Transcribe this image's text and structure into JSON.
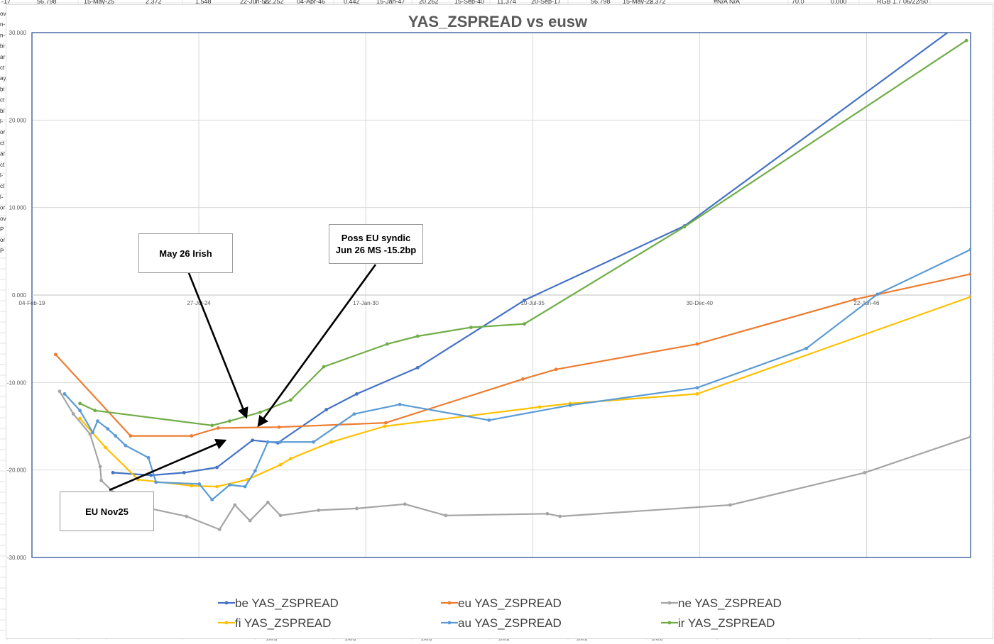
{
  "sheet": {
    "top_row": [
      "-17",
      "56.798",
      "15-May-25",
      "2.372",
      "1.548",
      "22-Jun-50",
      "22.252",
      "04-Apr-46",
      "0.442",
      "15-Jan-47",
      "20.262",
      "15-Sep-40",
      "11.374",
      "20-Sep-17",
      "56.798",
      "15-May-25",
      "2.372",
      "#N/A N/A",
      "70.0",
      "0.000",
      "RGB 1.7 06/22/50"
    ],
    "left_column": [
      "ov",
      "n-",
      "n-",
      "bi",
      "ar",
      "ct",
      "ay",
      "bi",
      "ct",
      "bi",
      "l-",
      "or",
      "ct",
      "ar",
      "ct",
      "l-",
      "ct",
      "l-",
      "or",
      "ov",
      "P",
      "or",
      "P"
    ],
    "bottom_row": [
      "#N/A",
      "#N/A",
      "#N/A",
      "#N/A",
      "#N/A",
      "#N/A"
    ]
  },
  "chart_data": {
    "type": "line",
    "title": "YAS_ZSPREAD vs eusw",
    "xlabel": "",
    "ylabel": "",
    "x_axis": {
      "type": "date",
      "tick_labels": [
        "04-Feb-19",
        "27-Jul-24",
        "17-Jan-30",
        "10-Jul-35",
        "30-Dec-40",
        "22-Jun-46"
      ],
      "tick_dates": [
        "2019-02-04",
        "2024-07-27",
        "2030-01-17",
        "2035-07-10",
        "2040-12-30",
        "2046-06-22"
      ],
      "range": [
        "2019-02-04",
        "2049-11-20"
      ]
    },
    "ylim": [
      -30,
      30
    ],
    "y_ticks": [
      "30.000",
      "20.000",
      "10.000",
      "0.000",
      "-10.000",
      "-20.000",
      "-30.000"
    ],
    "y_tick_values": [
      30,
      20,
      10,
      0,
      -10,
      -20,
      -30
    ],
    "grid": true,
    "legend_position": "bottom",
    "series": [
      {
        "name": "be YAS_ZSPREAD",
        "color": "#4472c4",
        "points": [
          [
            "2021-10-01",
            -20.3
          ],
          [
            "2023-01-01",
            -20.6
          ],
          [
            "2024-02-01",
            -20.3
          ],
          [
            "2025-03-01",
            -19.7
          ],
          [
            "2026-05-01",
            -16.6
          ],
          [
            "2027-03-01",
            -16.9
          ],
          [
            "2028-10-01",
            -13.1
          ],
          [
            "2029-10-01",
            -11.3
          ],
          [
            "2031-10-01",
            -8.3
          ],
          [
            "2035-04-01",
            -0.6
          ],
          [
            "2040-07-01",
            7.9
          ],
          [
            "2049-04-01",
            30.3
          ]
        ]
      },
      {
        "name": "eu YAS_ZSPREAD",
        "color": "#ed7d31",
        "points": [
          [
            "2019-11-15",
            -6.8
          ],
          [
            "2022-05-01",
            -16.1
          ],
          [
            "2024-05-01",
            -16.1
          ],
          [
            "2025-03-15",
            -15.2
          ],
          [
            "2027-03-15",
            -15.1
          ],
          [
            "2030-09-15",
            -14.6
          ],
          [
            "2035-03-15",
            -9.6
          ],
          [
            "2036-04-15",
            -8.5
          ],
          [
            "2040-12-01",
            -5.6
          ],
          [
            "2046-02-01",
            -0.5
          ],
          [
            "2049-11-20",
            2.4
          ]
        ]
      },
      {
        "name": "ne YAS_ZSPREAD",
        "color": "#a5a5a5",
        "points": [
          [
            "2020-01-01",
            -11.0
          ],
          [
            "2020-06-15",
            -13.6
          ],
          [
            "2021-01-01",
            -15.9
          ],
          [
            "2021-05-01",
            -19.6
          ],
          [
            "2021-05-15",
            -21.2
          ],
          [
            "2021-10-15",
            -22.6
          ],
          [
            "2022-03-01",
            -23.0
          ],
          [
            "2022-11-01",
            -24.3
          ],
          [
            "2024-03-01",
            -25.3
          ],
          [
            "2025-04-01",
            -26.8
          ],
          [
            "2025-10-01",
            -24.0
          ],
          [
            "2026-04-01",
            -25.8
          ],
          [
            "2026-11-01",
            -23.7
          ],
          [
            "2027-04-01",
            -25.2
          ],
          [
            "2028-07-01",
            -24.6
          ],
          [
            "2029-10-01",
            -24.4
          ],
          [
            "2031-05-01",
            -23.9
          ],
          [
            "2032-09-01",
            -25.2
          ],
          [
            "2036-01-01",
            -25.0
          ],
          [
            "2036-06-01",
            -25.3
          ],
          [
            "2042-01-01",
            -24.0
          ],
          [
            "2046-06-01",
            -20.3
          ],
          [
            "2049-11-20",
            -16.2
          ]
        ]
      },
      {
        "name": "fi YAS_ZSPREAD",
        "color": "#ffc000",
        "points": [
          [
            "2020-09-01",
            -14.1
          ],
          [
            "2021-07-01",
            -17.4
          ],
          [
            "2022-08-01",
            -21.1
          ],
          [
            "2024-05-01",
            -21.8
          ],
          [
            "2025-03-01",
            -21.9
          ],
          [
            "2026-03-01",
            -21.1
          ],
          [
            "2027-04-01",
            -19.4
          ],
          [
            "2027-08-01",
            -18.7
          ],
          [
            "2028-12-01",
            -16.8
          ],
          [
            "2030-09-01",
            -15.0
          ],
          [
            "2035-10-01",
            -12.8
          ],
          [
            "2036-10-01",
            -12.4
          ],
          [
            "2040-12-01",
            -11.3
          ],
          [
            "2049-11-20",
            -0.2
          ]
        ]
      },
      {
        "name": "au YAS_ZSPREAD",
        "color": "#5b9bd5",
        "points": [
          [
            "2020-03-01",
            -11.3
          ],
          [
            "2020-09-01",
            -13.2
          ],
          [
            "2021-02-01",
            -15.7
          ],
          [
            "2021-04-01",
            -14.4
          ],
          [
            "2021-08-01",
            -15.3
          ],
          [
            "2021-11-01",
            -16.1
          ],
          [
            "2022-03-01",
            -17.2
          ],
          [
            "2022-12-01",
            -18.6
          ],
          [
            "2023-03-01",
            -21.4
          ],
          [
            "2024-08-01",
            -21.6
          ],
          [
            "2025-01-01",
            -23.4
          ],
          [
            "2025-08-01",
            -21.7
          ],
          [
            "2026-02-01",
            -21.9
          ],
          [
            "2026-06-01",
            -20.1
          ],
          [
            "2026-11-01",
            -16.8
          ],
          [
            "2027-04-01",
            -16.8
          ],
          [
            "2028-05-01",
            -16.8
          ],
          [
            "2029-09-01",
            -13.6
          ],
          [
            "2031-03-01",
            -12.5
          ],
          [
            "2034-02-01",
            -14.3
          ],
          [
            "2036-10-01",
            -12.6
          ],
          [
            "2040-12-01",
            -10.6
          ],
          [
            "2044-07-01",
            -6.1
          ],
          [
            "2046-11-01",
            0.1
          ],
          [
            "2049-11-20",
            5.2
          ]
        ]
      },
      {
        "name": "ir YAS_ZSPREAD",
        "color": "#70ad47",
        "points": [
          [
            "2020-09-01",
            -12.4
          ],
          [
            "2021-03-01",
            -13.2
          ],
          [
            "2025-01-01",
            -14.9
          ],
          [
            "2025-08-01",
            -14.4
          ],
          [
            "2026-08-01",
            -13.4
          ],
          [
            "2027-08-01",
            -12.0
          ],
          [
            "2028-09-01",
            -8.2
          ],
          [
            "2030-10-01",
            -5.6
          ],
          [
            "2031-10-01",
            -4.7
          ],
          [
            "2033-07-01",
            -3.7
          ],
          [
            "2035-04-01",
            -3.3
          ],
          [
            "2040-07-01",
            7.8
          ],
          [
            "2049-10-01",
            29.1
          ]
        ]
      }
    ],
    "annotations": [
      {
        "text": "May 26 Irish"
      },
      {
        "text": "Poss EU syndic\nJun 26 MS -15.2bp"
      },
      {
        "text": "EU Nov25"
      }
    ]
  }
}
